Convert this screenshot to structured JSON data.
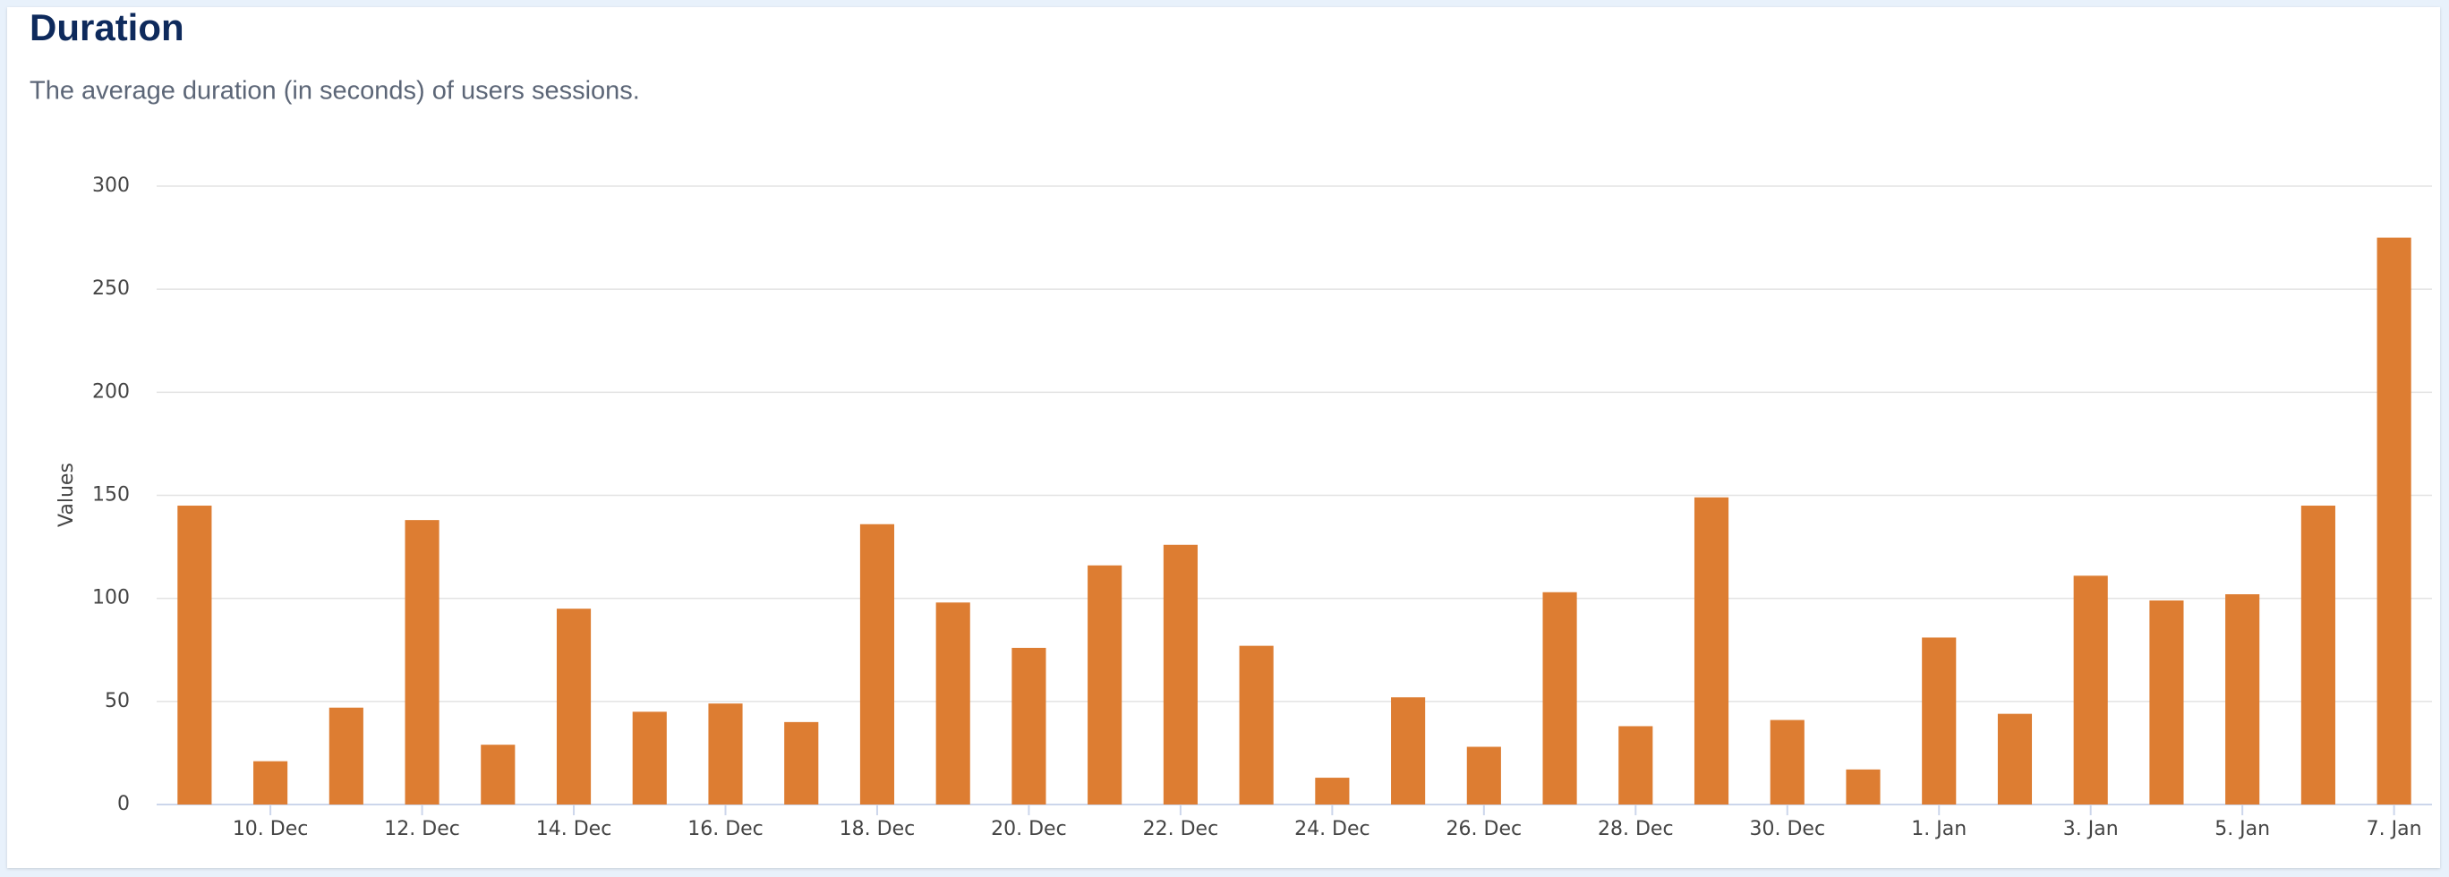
{
  "chart_data": {
    "type": "bar",
    "title": "Duration",
    "subtitle": "The average duration (in seconds) of users sessions.",
    "y_label": "Values",
    "categories": [
      null,
      "10. Dec",
      null,
      "12. Dec",
      null,
      "14. Dec",
      null,
      "16. Dec",
      null,
      "18. Dec",
      null,
      "20. Dec",
      null,
      "22. Dec",
      null,
      "24. Dec",
      null,
      "26. Dec",
      null,
      "28. Dec",
      null,
      "30. Dec",
      null,
      "1. Jan",
      null,
      "3. Jan",
      null,
      "5. Jan",
      null,
      "7. Jan"
    ],
    "values": [
      145,
      21,
      47,
      138,
      29,
      95,
      45,
      49,
      40,
      136,
      98,
      76,
      116,
      126,
      77,
      13,
      52,
      28,
      103,
      38,
      149,
      41,
      17,
      81,
      44,
      111,
      99,
      102,
      145,
      275
    ],
    "color": "#dd7d32",
    "ylim": [
      0,
      300
    ],
    "yticks": [
      0,
      50,
      100,
      150,
      200,
      250,
      300
    ],
    "grid": true
  }
}
